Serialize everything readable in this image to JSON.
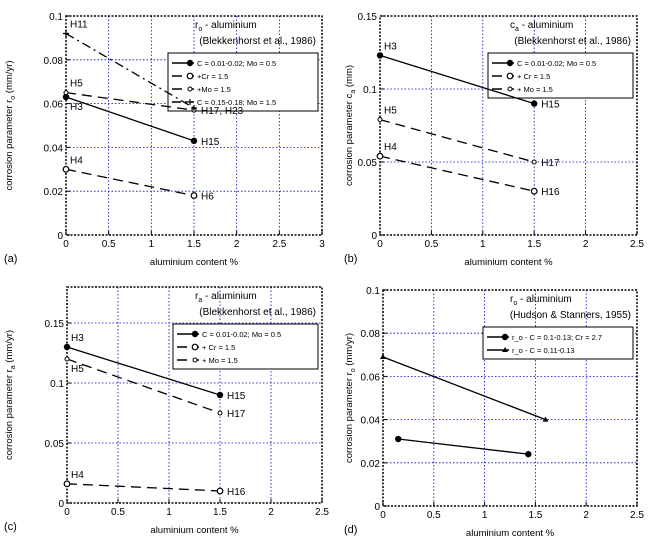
{
  "chart_data": [
    {
      "panel": "(a)",
      "type": "line",
      "title": {
        "sym": "r",
        "sub": "o",
        "rest": " - aluminium"
      },
      "subtitle": "(Blekkenhorst et al., 1986)",
      "xlabel": "aluminium content %",
      "ylabel": {
        "pre": "corrosion parameter  r",
        "sub": "o",
        "post": " (mm/yr)"
      },
      "xlim": [
        0,
        3
      ],
      "ylim": [
        0,
        0.1
      ],
      "xticks": [
        0,
        0.5,
        1,
        1.5,
        2,
        2.5,
        3
      ],
      "xtick_labels": [
        "0",
        "0.5",
        "1",
        "1.5",
        "2",
        "2.5",
        "3"
      ],
      "yticks": [
        0,
        0.02,
        0.04,
        0.06,
        0.08,
        0.1
      ],
      "ytick_labels": [
        "0",
        "0.02",
        "0.04",
        "0.06",
        "0.08",
        "0.1"
      ],
      "grid": true,
      "grid_color": "#0000cc",
      "legend_position": "top-right",
      "series": [
        {
          "name": "C = 0.01-0.02; Mo = 0.5",
          "style": "solid",
          "marker": "filled-circle",
          "x": [
            0,
            1.5
          ],
          "y": [
            0.063,
            0.043
          ],
          "point_labels": [
            "H3",
            "H15"
          ]
        },
        {
          "name": "  +Cr = 1.5",
          "style": "dashed",
          "marker": "open-circle",
          "x": [
            0,
            1.5
          ],
          "y": [
            0.03,
            0.018
          ],
          "point_labels": [
            "H4",
            "H6"
          ]
        },
        {
          "name": "  +Mo = 1.5",
          "style": "dashed",
          "marker": "small-circle",
          "x": [
            0,
            1.5
          ],
          "y": [
            0.065,
            0.057
          ],
          "point_labels": [
            "H5",
            "H17, H23"
          ]
        },
        {
          "name": "C = 0.15-0.18; Mo = 1.5",
          "style": "dashdot",
          "marker": "plus",
          "x": [
            0,
            1.5
          ],
          "y": [
            0.092,
            0.058
          ],
          "point_labels": [
            "H11",
            ""
          ]
        }
      ]
    },
    {
      "panel": "(b)",
      "type": "line",
      "title": {
        "sym": "c",
        "sub": "a",
        "rest": " - aluminium"
      },
      "subtitle": "(Blekkenhorst et al., 1986)",
      "xlabel": "aluminium content  %",
      "ylabel": {
        "pre": "corrosion parameter  c",
        "sub": "a",
        "post": " (mm)"
      },
      "xlim": [
        0,
        2.5
      ],
      "ylim": [
        0,
        0.15
      ],
      "xticks": [
        0,
        0.5,
        1,
        1.5,
        2,
        2.5
      ],
      "xtick_labels": [
        "0",
        "0.5",
        "1",
        "1.5",
        "2",
        "2.5"
      ],
      "yticks": [
        0,
        0.05,
        0.1,
        0.15
      ],
      "ytick_labels": [
        "0",
        "0.05",
        "0.1",
        "0.15"
      ],
      "grid": true,
      "grid_color": "#0000cc",
      "legend_position": "top-right",
      "series": [
        {
          "name": "C = 0.01-0.02; Mo = 0.5",
          "style": "solid",
          "marker": "filled-circle",
          "x": [
            0,
            1.5
          ],
          "y": [
            0.123,
            0.09
          ],
          "point_labels": [
            "H3",
            "H15"
          ]
        },
        {
          "name": "  + Cr = 1.5",
          "style": "dashed",
          "marker": "open-circle",
          "x": [
            0,
            1.5
          ],
          "y": [
            0.054,
            0.03
          ],
          "point_labels": [
            "H4",
            "H16"
          ]
        },
        {
          "name": "  + Mo = 1.5",
          "style": "dashed",
          "marker": "small-circle",
          "x": [
            0,
            1.5
          ],
          "y": [
            0.079,
            0.05
          ],
          "point_labels": [
            "H5",
            "H17"
          ]
        }
      ]
    },
    {
      "panel": "(c)",
      "type": "line",
      "title": {
        "sym": "r",
        "sub": "a",
        "rest": " - aluminium"
      },
      "subtitle": "(Blekkenhorst et al., 1986)",
      "xlabel": "aluminium content %",
      "ylabel": {
        "pre": "corrosion parameter  r",
        "sub": "a",
        "post": " (mm/yr)"
      },
      "xlim": [
        0,
        2.5
      ],
      "ylim": [
        0,
        0.18
      ],
      "xticks": [
        0,
        0.5,
        1,
        1.5,
        2,
        2.5
      ],
      "xtick_labels": [
        "0",
        "0.5",
        "1",
        "1.5",
        "2",
        "2.5"
      ],
      "yticks": [
        0,
        0.05,
        0.1,
        0.15
      ],
      "ytick_labels": [
        "0",
        "0.05",
        "0.1",
        "0.15"
      ],
      "grid": true,
      "grid_color": "#0000cc",
      "legend_position": "top-right",
      "series": [
        {
          "name": "C = 0.01-0.02; Mo = 0.5",
          "style": "solid",
          "marker": "filled-circle",
          "x": [
            0,
            1.5
          ],
          "y": [
            0.13,
            0.09
          ],
          "point_labels": [
            "H3",
            "H15"
          ]
        },
        {
          "name": "  + Cr = 1.5",
          "style": "dashed",
          "marker": "open-circle",
          "x": [
            0,
            1.5
          ],
          "y": [
            0.016,
            0.01
          ],
          "point_labels": [
            "H4",
            "H16"
          ]
        },
        {
          "name": "  + Mo = 1.5",
          "style": "dashed",
          "marker": "small-circle",
          "x": [
            0,
            1.5
          ],
          "y": [
            0.12,
            0.075
          ],
          "point_labels": [
            "H5",
            "H17"
          ]
        }
      ]
    },
    {
      "panel": "(d)",
      "type": "line",
      "title": {
        "sym": "r",
        "sub": "o",
        "rest": " - aluminium"
      },
      "subtitle": "(Hudson & Stanners, 1955)",
      "xlabel": "aluminium content  %",
      "ylabel": {
        "pre": "corrosion parameter  r",
        "sub": "o",
        "post": " (mm/yr)"
      },
      "xlim": [
        0,
        2.5
      ],
      "ylim": [
        0,
        0.1
      ],
      "xticks": [
        0,
        0.5,
        1,
        1.5,
        2,
        2.5
      ],
      "xtick_labels": [
        "0",
        "0.5",
        "1",
        "1.5",
        "2",
        "2.5"
      ],
      "yticks": [
        0,
        0.02,
        0.04,
        0.06,
        0.08,
        0.1
      ],
      "ytick_labels": [
        "0",
        "0.02",
        "0.04",
        "0.06",
        "0.08",
        "0.1"
      ],
      "grid": true,
      "grid_color": "#0000cc",
      "legend_position": "top-right",
      "series": [
        {
          "name": "r_o - C = 0.1-0.13; Cr = 2.7",
          "style": "solid",
          "marker": "filled-circle",
          "x": [
            0.15,
            1.43
          ],
          "y": [
            0.031,
            0.024
          ],
          "point_labels": [
            "",
            ""
          ]
        },
        {
          "name": "r_o - C = 0.11-0.13",
          "style": "solid",
          "marker": "triangle",
          "x": [
            0,
            1.6
          ],
          "y": [
            0.069,
            0.04
          ],
          "point_labels": [
            "",
            ""
          ]
        }
      ]
    }
  ]
}
